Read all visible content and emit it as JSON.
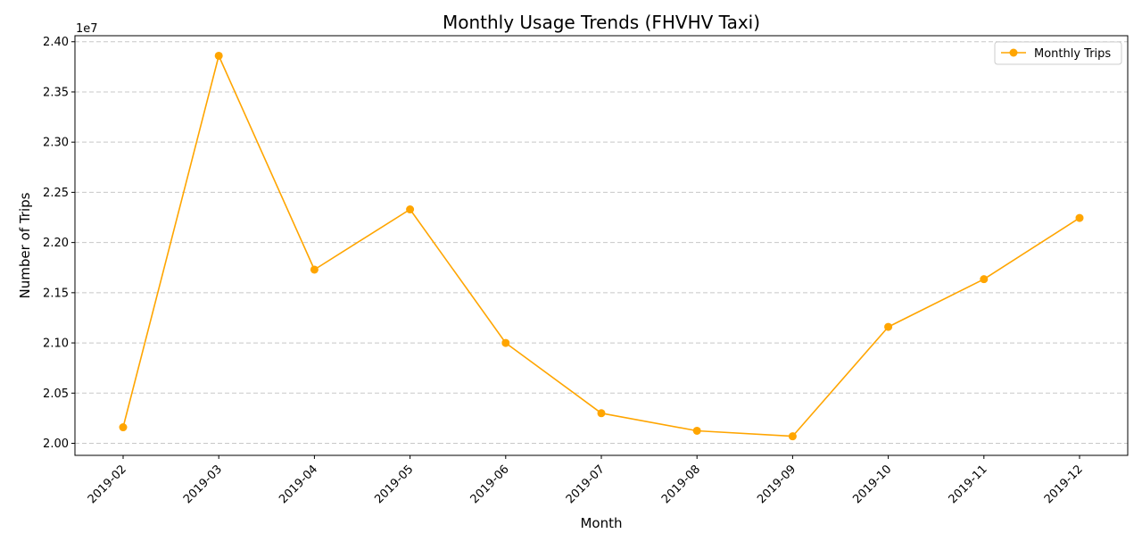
{
  "chart_data": {
    "type": "line",
    "title": "Monthly Usage Trends (FHVHV Taxi)",
    "xlabel": "Month",
    "ylabel": "Number of Trips",
    "y_offset_label": "1e7",
    "y_scale_factor": 10000000,
    "categories": [
      "2019-02",
      "2019-03",
      "2019-04",
      "2019-05",
      "2019-06",
      "2019-07",
      "2019-08",
      "2019-09",
      "2019-10",
      "2019-11",
      "2019-12"
    ],
    "series": [
      {
        "name": "Monthly Trips",
        "color": "#FFA500",
        "marker": "circle",
        "values": [
          20160000,
          23860000,
          21730000,
          22330000,
          21000000,
          20300000,
          20125000,
          20070000,
          21160000,
          21635000,
          22245000
        ]
      }
    ],
    "yticks": [
      20000000,
      20500000,
      21000000,
      21500000,
      22000000,
      22500000,
      23000000,
      23500000,
      24000000
    ],
    "ytick_labels": [
      "2.00",
      "2.05",
      "2.10",
      "2.15",
      "2.20",
      "2.25",
      "2.30",
      "2.35",
      "2.40"
    ],
    "ylim": [
      19880000,
      24060000
    ],
    "x_tick_rotation_deg": 45,
    "grid": "y-dashed",
    "legend_position": "top-right"
  }
}
